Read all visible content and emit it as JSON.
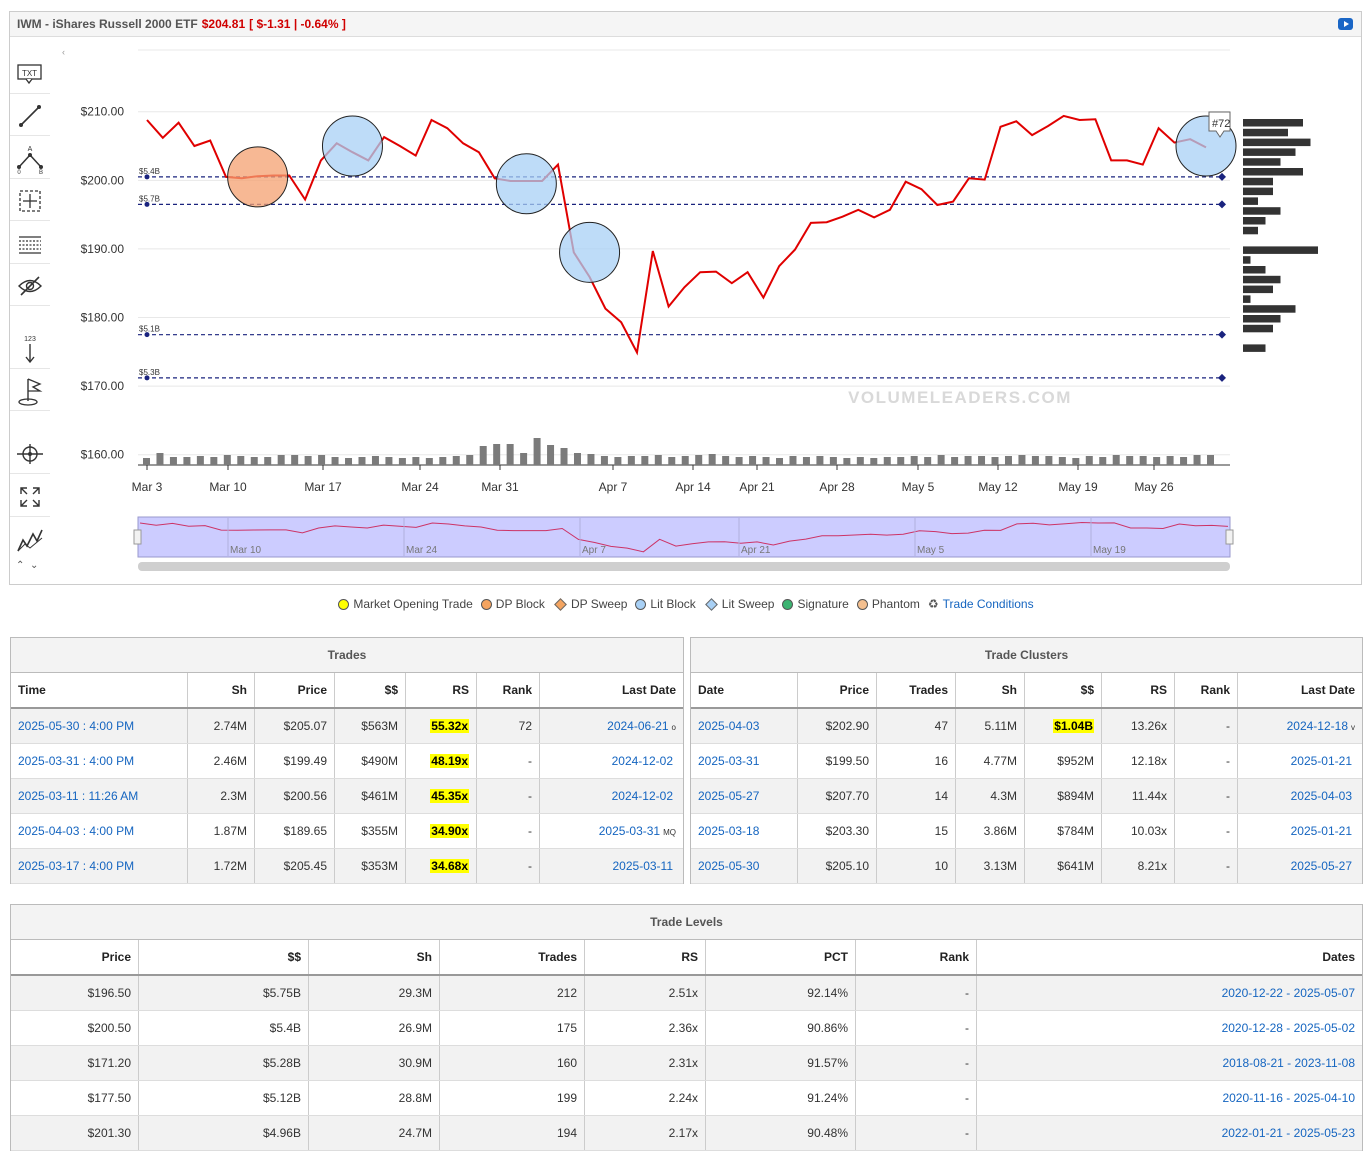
{
  "header": {
    "symbol_title": "IWM - iShares Russell 2000 ETF",
    "price": "$204.81",
    "change": "[ $-1.31 | -0.64% ]"
  },
  "chart_data": {
    "type": "line",
    "x_tick_labels": [
      "Mar 3",
      "Mar 10",
      "Mar 17",
      "Mar 24",
      "Mar 31",
      "Apr 7",
      "Apr 14",
      "Apr 21",
      "Apr 28",
      "May 5",
      "May 12",
      "May 19",
      "May 26"
    ],
    "navigator_labels": [
      "Mar 10",
      "Mar 24",
      "Apr 7",
      "Apr 21",
      "May 5",
      "May 19"
    ],
    "y_tick_labels": [
      "$210.00",
      "$200.00",
      "$190.00",
      "$180.00",
      "$170.00",
      "$160.00"
    ],
    "ylim": [
      158.5,
      219
    ],
    "series": [
      {
        "values": [
          208.8,
          206.2,
          208.4,
          205,
          205.8,
          200.5,
          200.3,
          200.6,
          200.7,
          200.7,
          197.2,
          202.9,
          205.4,
          204.1,
          202.9,
          206.3,
          205,
          203.6,
          208.8,
          207.6,
          205.4,
          204.1,
          200.3,
          199.9,
          199.9,
          199.9,
          202.3,
          189.5,
          185.9,
          181.3,
          179.3,
          174.9,
          189.7,
          181.6,
          184.4,
          186.6,
          186.7,
          185,
          186.6,
          182.9,
          187.5,
          189.9,
          193.8,
          193.9,
          194.7,
          195.7,
          194.6,
          195.7,
          199.8,
          198.7,
          196.4,
          196.9,
          200.3,
          200.1,
          207.8,
          208.6,
          206.6,
          207.9,
          209.4,
          208.8,
          208.9,
          202.9,
          202.9,
          202.3,
          207.6,
          205.5,
          206,
          204.8
        ]
      }
    ],
    "level_lines": [
      {
        "label": "$5.4B",
        "price": 200.5
      },
      {
        "label": "$5.7B",
        "price": 196.5
      },
      {
        "label": "$5.1B",
        "price": 177.5
      },
      {
        "label": "$5.3B",
        "price": 171.2
      }
    ],
    "volume_bars": [
      7,
      12,
      8,
      8,
      9,
      8,
      10,
      9,
      8,
      8,
      10,
      10,
      9,
      10,
      8,
      7,
      8,
      9,
      8,
      7,
      8,
      7,
      8,
      9,
      10,
      19,
      21,
      21,
      12,
      27,
      20,
      17,
      12,
      11,
      9,
      8,
      9,
      9,
      10,
      8,
      9,
      10,
      11,
      9,
      8,
      9,
      8,
      7,
      9,
      8,
      9,
      8,
      7,
      8,
      7,
      8,
      8,
      9,
      8,
      10,
      8,
      9,
      9,
      8,
      9,
      10,
      9,
      9,
      8,
      7,
      9,
      8,
      10,
      9,
      9,
      8,
      9,
      8,
      10,
      10
    ],
    "markers": [
      {
        "type": "DP Block",
        "index": 7,
        "price": 200.5,
        "size": "large"
      },
      {
        "type": "Lit Block",
        "index": 13,
        "price": 205,
        "size": "large"
      },
      {
        "type": "Lit Block",
        "index": 24,
        "price": 199.5,
        "size": "large"
      },
      {
        "type": "Lit Block",
        "index": 28,
        "price": 189.5,
        "size": "large"
      },
      {
        "type": "Lit Block",
        "index": 67,
        "price": 205,
        "size": "large"
      }
    ],
    "marker_tag": "#72",
    "volume_profile": [
      8,
      6,
      9,
      7,
      5,
      8,
      4,
      4,
      2,
      5,
      3,
      2,
      0,
      10,
      1,
      3,
      5,
      4,
      1,
      7,
      5,
      4,
      0,
      3
    ],
    "watermark": "VOLUMELEADERS.COM"
  },
  "toolbar": {
    "tools": [
      "text-tool",
      "line-tool",
      "fib-tool",
      "crosshair-tool",
      "levels-tool",
      "hide-tool",
      "counter-tool",
      "flag-tool",
      "target-tool",
      "fullscreen-tool",
      "chart-type-tool"
    ],
    "txt_label": "TXT",
    "counter_label": "123"
  },
  "legend": [
    {
      "label": "Market Opening Trade",
      "color": "#ffff00",
      "shape": "dot"
    },
    {
      "label": "DP Block",
      "color": "#f4a460",
      "shape": "dot"
    },
    {
      "label": "DP Sweep",
      "color": "#f4a460",
      "shape": "diamond"
    },
    {
      "label": "Lit Block",
      "color": "#a8d0f5",
      "shape": "dot"
    },
    {
      "label": "Lit Sweep",
      "color": "#a8d0f5",
      "shape": "diamond"
    },
    {
      "label": "Signature",
      "color": "#3cb371",
      "shape": "dot"
    },
    {
      "label": "Phantom",
      "color": "#f4c090",
      "shape": "dot"
    },
    {
      "label": "Trade Conditions",
      "color": "",
      "shape": "icon"
    }
  ],
  "trades": {
    "title": "Trades",
    "columns": [
      "Time",
      "Sh",
      "Price",
      "$$",
      "RS",
      "Rank",
      "Last Date"
    ],
    "rows": [
      {
        "time": "2025-05-30 : 4:00 PM",
        "sh": "2.74M",
        "price": "$205.07",
        "dollars": "$563M",
        "rs": "55.32x",
        "rank": "72",
        "last": "2024-06-21",
        "flag": "o"
      },
      {
        "time": "2025-03-31 : 4:00 PM",
        "sh": "2.46M",
        "price": "$199.49",
        "dollars": "$490M",
        "rs": "48.19x",
        "rank": "-",
        "last": "2024-12-02",
        "flag": ""
      },
      {
        "time": "2025-03-11 : 11:26 AM",
        "sh": "2.3M",
        "price": "$200.56",
        "dollars": "$461M",
        "rs": "45.35x",
        "rank": "-",
        "last": "2024-12-02",
        "flag": ""
      },
      {
        "time": "2025-04-03 : 4:00 PM",
        "sh": "1.87M",
        "price": "$189.65",
        "dollars": "$355M",
        "rs": "34.90x",
        "rank": "-",
        "last": "2025-03-31",
        "flag": "MQ"
      },
      {
        "time": "2025-03-17 : 4:00 PM",
        "sh": "1.72M",
        "price": "$205.45",
        "dollars": "$353M",
        "rs": "34.68x",
        "rank": "-",
        "last": "2025-03-11",
        "flag": ""
      }
    ]
  },
  "clusters": {
    "title": "Trade Clusters",
    "columns": [
      "Date",
      "Price",
      "Trades",
      "Sh",
      "$$",
      "RS",
      "Rank",
      "Last Date"
    ],
    "rows": [
      {
        "date": "2025-04-03",
        "price": "$202.90",
        "trades": "47",
        "sh": "5.11M",
        "dollars": "$1.04B",
        "rs": "13.26x",
        "rank": "-",
        "last": "2024-12-18",
        "flag": "v"
      },
      {
        "date": "2025-03-31",
        "price": "$199.50",
        "trades": "16",
        "sh": "4.77M",
        "dollars": "$952M",
        "rs": "12.18x",
        "rank": "-",
        "last": "2025-01-21",
        "flag": ""
      },
      {
        "date": "2025-05-27",
        "price": "$207.70",
        "trades": "14",
        "sh": "4.3M",
        "dollars": "$894M",
        "rs": "11.44x",
        "rank": "-",
        "last": "2025-04-03",
        "flag": ""
      },
      {
        "date": "2025-03-18",
        "price": "$203.30",
        "trades": "15",
        "sh": "3.86M",
        "dollars": "$784M",
        "rs": "10.03x",
        "rank": "-",
        "last": "2025-01-21",
        "flag": ""
      },
      {
        "date": "2025-05-30",
        "price": "$205.10",
        "trades": "10",
        "sh": "3.13M",
        "dollars": "$641M",
        "rs": "8.21x",
        "rank": "-",
        "last": "2025-05-27",
        "flag": ""
      }
    ]
  },
  "levels": {
    "title": "Trade Levels",
    "columns": [
      "Price",
      "$$",
      "Sh",
      "Trades",
      "RS",
      "PCT",
      "Rank",
      "Dates"
    ],
    "rows": [
      {
        "price": "$196.50",
        "dollars": "$5.75B",
        "sh": "29.3M",
        "trades": "212",
        "rs": "2.51x",
        "pct": "92.14%",
        "rank": "-",
        "dates": "2020-12-22 - 2025-05-07"
      },
      {
        "price": "$200.50",
        "dollars": "$5.4B",
        "sh": "26.9M",
        "trades": "175",
        "rs": "2.36x",
        "pct": "90.86%",
        "rank": "-",
        "dates": "2020-12-28 - 2025-05-02"
      },
      {
        "price": "$171.20",
        "dollars": "$5.28B",
        "sh": "30.9M",
        "trades": "160",
        "rs": "2.31x",
        "pct": "91.57%",
        "rank": "-",
        "dates": "2018-08-21 - 2023-11-08"
      },
      {
        "price": "$177.50",
        "dollars": "$5.12B",
        "sh": "28.8M",
        "trades": "199",
        "rs": "2.24x",
        "pct": "91.24%",
        "rank": "-",
        "dates": "2020-11-16 - 2025-04-10"
      },
      {
        "price": "$201.30",
        "dollars": "$4.96B",
        "sh": "24.7M",
        "trades": "194",
        "rs": "2.17x",
        "pct": "90.48%",
        "rank": "-",
        "dates": "2022-01-21 - 2025-05-23"
      }
    ]
  }
}
